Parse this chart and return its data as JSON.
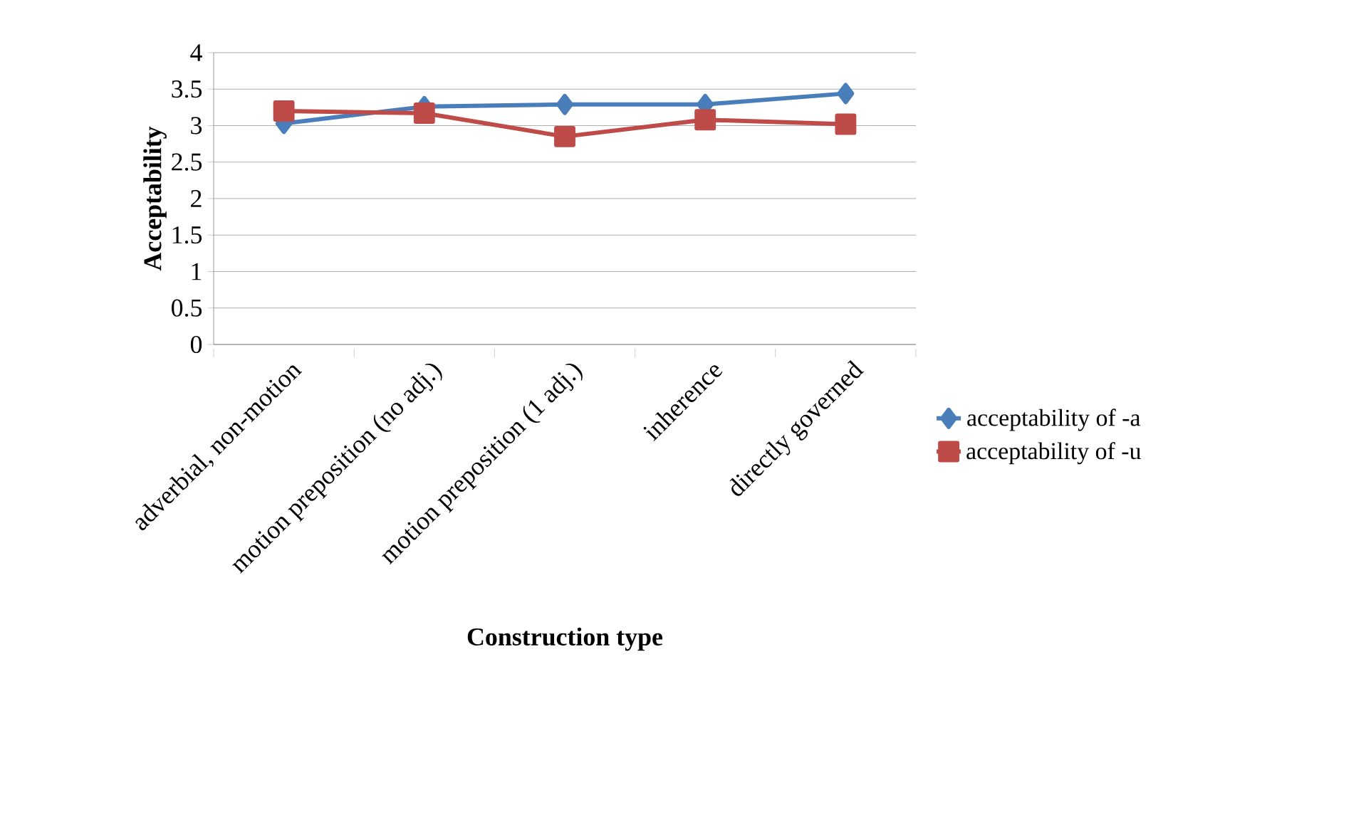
{
  "chart_data": {
    "type": "line",
    "xlabel": "Construction type",
    "ylabel": "Acceptability",
    "categories": [
      "adverbial, non-motion",
      "motion preposition (no adj.)",
      "motion preposition (1 adj.)",
      "inherence",
      "directly governed"
    ],
    "series": [
      {
        "name": "acceptability of -a",
        "color": "#4a7ebb",
        "marker": "diamond",
        "values": [
          3.03,
          3.26,
          3.29,
          3.29,
          3.44
        ]
      },
      {
        "name": "acceptability of -u",
        "color": "#be4b48",
        "marker": "square",
        "values": [
          3.2,
          3.17,
          2.85,
          3.08,
          3.02
        ]
      }
    ],
    "ylim": [
      0,
      4
    ],
    "yticks": [
      0,
      0.5,
      1,
      1.5,
      2,
      2.5,
      3,
      3.5,
      4
    ],
    "grid": "y",
    "legend": "right"
  }
}
